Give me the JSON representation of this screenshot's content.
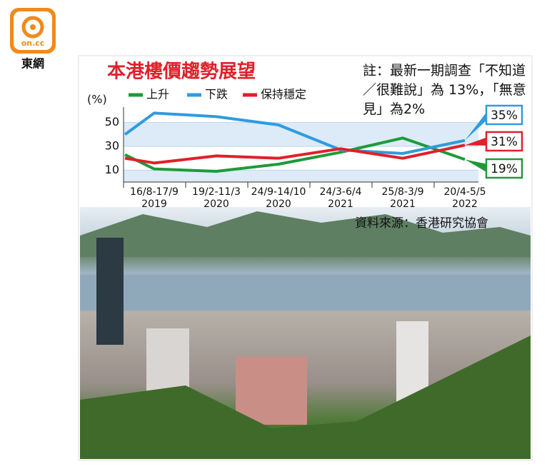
{
  "logo": {
    "text": "on.cc",
    "caption": "東網"
  },
  "chart_data": {
    "type": "line",
    "title": "本港樓價趨勢展望",
    "y_label": "(%)",
    "note": "註：最新一期調查「不知道／很難說」為 13%，「無意見」為2%",
    "source": "資料來源：香港研究協會",
    "categories": [
      null,
      "16/8-17/9\n2019",
      "19/2-11/3\n2020",
      "24/9-14/10\n2020",
      "24/3-6/4\n2021",
      "25/8-3/9\n2021",
      "20/4-5/5\n2022"
    ],
    "ylim": [
      0,
      63
    ],
    "yticks": [
      10,
      30,
      50
    ],
    "series": [
      {
        "name": "上升",
        "color": "#1f9a3a",
        "values": [
          23,
          11,
          9,
          15,
          25,
          37,
          19
        ],
        "end_label": "19%"
      },
      {
        "name": "下跌",
        "color": "#2f9be0",
        "values": [
          40,
          58,
          55,
          48,
          27,
          24,
          35
        ],
        "end_label": "35%"
      },
      {
        "name": "保持穩定",
        "color": "#e0202a",
        "values": [
          20,
          16,
          22,
          20,
          28,
          20,
          31
        ],
        "end_label": "31%"
      }
    ]
  }
}
